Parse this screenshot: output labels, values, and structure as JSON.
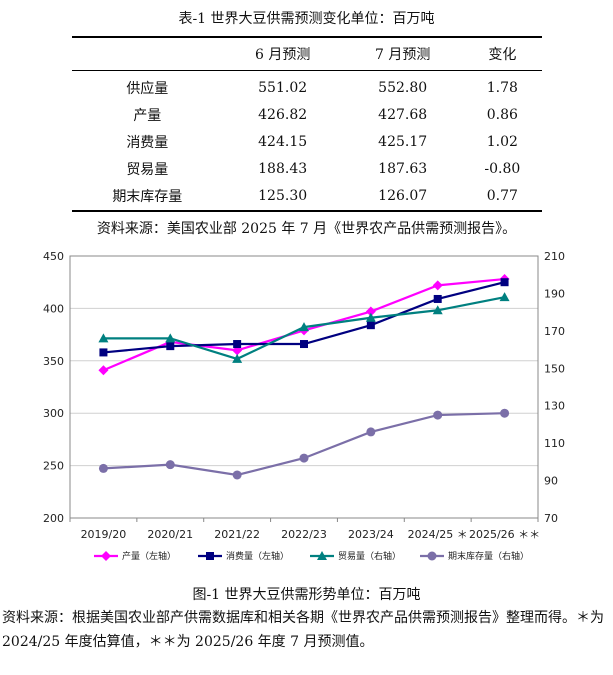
{
  "table": {
    "title": "表-1 世界大豆供需预测变化单位：百万吨",
    "headers": [
      "",
      "6 月预测",
      "7 月预测",
      "变化"
    ],
    "rows": [
      [
        "供应量",
        "551.02",
        "552.80",
        "1.78"
      ],
      [
        "产量",
        "426.82",
        "427.68",
        "0.86"
      ],
      [
        "消费量",
        "424.15",
        "425.17",
        "1.02"
      ],
      [
        "贸易量",
        "188.43",
        "187.63",
        "-0.80"
      ],
      [
        "期末库存量",
        "125.30",
        "126.07",
        "0.77"
      ]
    ],
    "source": "资料来源：美国农业部 2025 年 7 月《世界农产品供需预测报告》。"
  },
  "chart_data": {
    "type": "line",
    "categories": [
      "2019/20",
      "2020/21",
      "2021/22",
      "2022/23",
      "2023/24",
      "2024/25 ＊",
      "2025/26 ＊＊"
    ],
    "ylim_left": [
      200,
      450
    ],
    "yticks_left": [
      200,
      250,
      300,
      350,
      400,
      450
    ],
    "ylim_right": [
      70,
      210
    ],
    "yticks_right": [
      70,
      90,
      110,
      130,
      150,
      170,
      190,
      210
    ],
    "grid": true,
    "legend_position": "bottom",
    "series": [
      {
        "name": "产量（左轴）",
        "axis": "left",
        "color": "#ff00ff",
        "marker": "diamond",
        "values": [
          341,
          368,
          360,
          379,
          397,
          422,
          428
        ]
      },
      {
        "name": "消费量（左轴）",
        "axis": "left",
        "color": "#000080",
        "marker": "square",
        "values": [
          358,
          364,
          366,
          366,
          384,
          409,
          425
        ]
      },
      {
        "name": "贸易量（右轴）",
        "axis": "right",
        "color": "#008080",
        "marker": "triangle",
        "values": [
          166,
          166,
          155,
          172,
          177,
          181,
          188
        ]
      },
      {
        "name": "期末库存量（右轴）",
        "axis": "right",
        "color": "#7b6fa8",
        "marker": "circle",
        "values": [
          96.5,
          98.5,
          93,
          102,
          116,
          125,
          126
        ]
      }
    ]
  },
  "figure": {
    "caption": "图-1 世界大豆供需形势单位：百万吨",
    "note": "资料来源：根据美国农业部产供需数据库和相关各期《世界农产品供需预测报告》整理而得。＊为 2024/25 年度估算值，＊＊为 2025/26 年度 7 月预测值。"
  }
}
